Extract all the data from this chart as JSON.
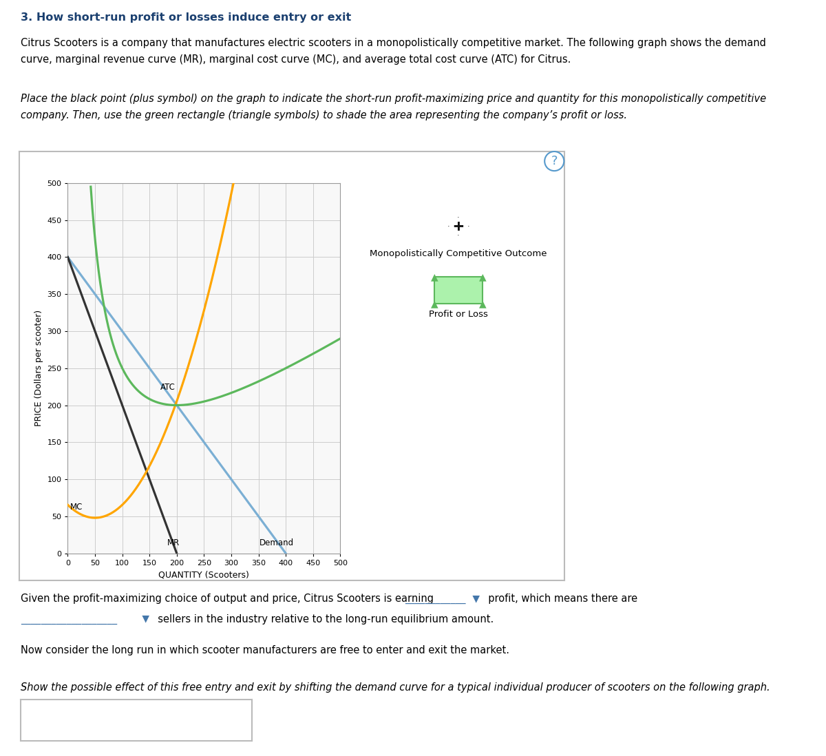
{
  "title": "3. How short-run profit or losses induce entry or exit",
  "title_color": "#1A3F6F",
  "para1_l1": "Citrus Scooters is a company that manufactures electric scooters in a monopolistically competitive market. The following graph shows the demand",
  "para1_l2": "curve, marginal revenue curve (MR), marginal cost curve (MC), and average total cost curve (ATC) for Citrus.",
  "para2_l1": "Place the black point (plus symbol) on the graph to indicate the short-run profit-maximizing price and quantity for this monopolistically competitive",
  "para2_l2": "company. Then, use the green rectangle (triangle symbols) to shade the area representing the company’s profit or loss.",
  "xlabel": "QUANTITY (Scooters)",
  "ylabel": "PRICE (Dollars per scooter)",
  "xlim": [
    0,
    500
  ],
  "ylim": [
    0,
    500
  ],
  "xticks": [
    0,
    50,
    100,
    150,
    200,
    250,
    300,
    350,
    400,
    450,
    500
  ],
  "yticks": [
    0,
    50,
    100,
    150,
    200,
    250,
    300,
    350,
    400,
    450,
    500
  ],
  "demand_color": "#7BAFD4",
  "mr_color": "#333333",
  "mc_color": "#FFA500",
  "atc_color": "#5CB85C",
  "grid_color": "#CCCCCC",
  "legend_outcome": "Monopolistically Competitive Outcome",
  "legend_pl": "Profit or Loss",
  "qmark_color": "#5599CC",
  "box_edge_color": "#BBBBBB",
  "green_rect_face": "#90EE90",
  "green_rect_edge": "#5CB85C",
  "triangle_color": "#5CB85C",
  "underline_color": "#4477AA",
  "bottom1a": "Given the profit-maximizing choice of output and price, Citrus Scooters is earning",
  "bottom1b": "profit, which means there are",
  "bottom2": "sellers in the industry relative to the long-run equilibrium amount.",
  "bottom3": "Now consider the long run in which scooter manufacturers are free to enter and exit the market.",
  "bottom4": "Show the possible effect of this free entry and exit by shifting the demand curve for a typical individual producer of scooters on the following graph."
}
